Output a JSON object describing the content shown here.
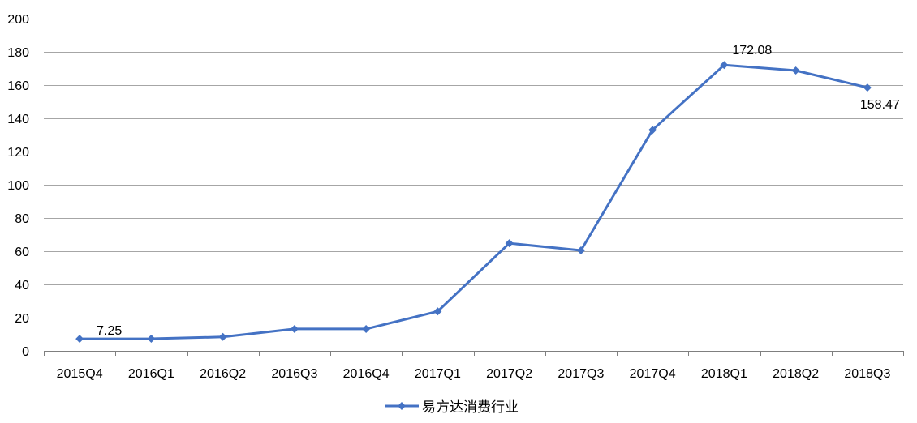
{
  "chart_data": {
    "type": "line",
    "categories": [
      "2015Q4",
      "2016Q1",
      "2016Q2",
      "2016Q3",
      "2016Q4",
      "2017Q1",
      "2017Q2",
      "2017Q3",
      "2017Q4",
      "2018Q1",
      "2018Q2",
      "2018Q3"
    ],
    "series": [
      {
        "name": "易方达消费行业",
        "color": "#4472C4",
        "values": [
          7.25,
          7.3,
          8.4,
          13.2,
          13.2,
          23.8,
          64.8,
          60.5,
          133.0,
          172.08,
          168.8,
          158.47
        ]
      }
    ],
    "data_labels": [
      {
        "index": 0,
        "text": "7.25"
      },
      {
        "index": 9,
        "text": "172.08"
      },
      {
        "index": 11,
        "text": "158.47"
      }
    ],
    "ylim": [
      0,
      200
    ],
    "yticks": [
      0,
      20,
      40,
      60,
      80,
      100,
      120,
      140,
      160,
      180,
      200
    ],
    "grid": true,
    "legend": "bottom",
    "title": "",
    "xlabel": "",
    "ylabel": ""
  },
  "colors": {
    "grid": "#A6A6A6",
    "axis": "#7F7F7F"
  }
}
